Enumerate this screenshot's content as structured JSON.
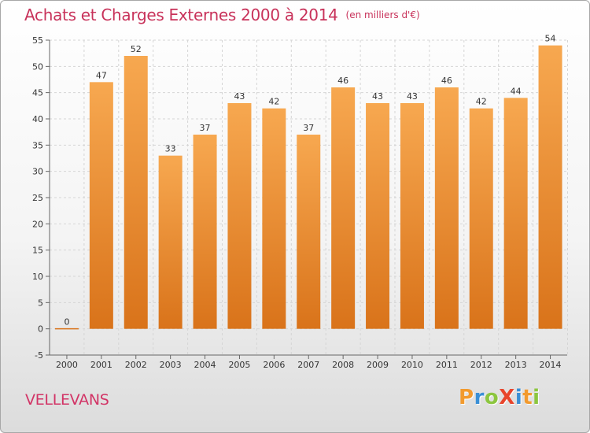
{
  "title": "Achats et Charges Externes 2000 à 2014",
  "unit": "(en milliers d'€)",
  "city": "VELLEVANS",
  "logo": {
    "text": "ProXiti",
    "letters": [
      {
        "ch": "P",
        "color": "#f29a2e"
      },
      {
        "ch": "r",
        "color": "#3a8fd6"
      },
      {
        "ch": "o",
        "color": "#8cc63f"
      },
      {
        "ch": "X",
        "color": "#e8452c"
      },
      {
        "ch": "i",
        "color": "#3a8fd6"
      },
      {
        "ch": "t",
        "color": "#f29a2e"
      },
      {
        "ch": "i",
        "color": "#8cc63f"
      }
    ]
  },
  "colors": {
    "title": "#c8325a",
    "bar_light": "#f7a850",
    "bar_dark": "#d9731a",
    "grid": "#d5d5d5"
  },
  "chart_data": {
    "type": "bar",
    "categories": [
      "2000",
      "2001",
      "2002",
      "2003",
      "2004",
      "2005",
      "2006",
      "2007",
      "2008",
      "2009",
      "2010",
      "2011",
      "2012",
      "2013",
      "2014"
    ],
    "values": [
      0,
      47,
      52,
      33,
      37,
      43,
      42,
      37,
      46,
      43,
      43,
      46,
      42,
      44,
      54
    ],
    "ylim": [
      -5,
      55
    ],
    "yticks": [
      -5,
      0,
      5,
      10,
      15,
      20,
      25,
      30,
      35,
      40,
      45,
      50,
      55
    ],
    "grid": "horizontal dashed",
    "legend": "none"
  }
}
